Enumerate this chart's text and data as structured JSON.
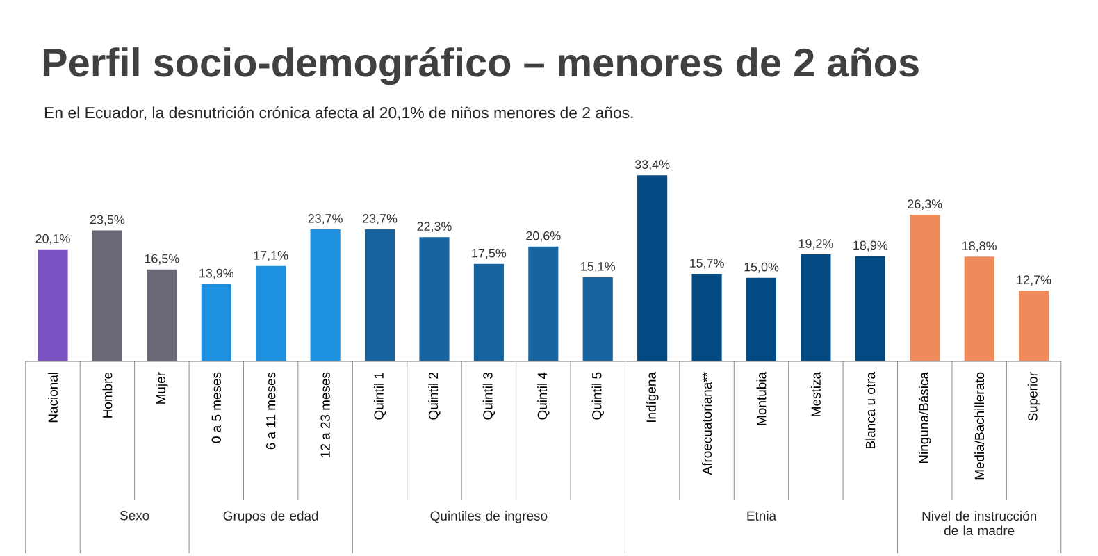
{
  "chart_data": {
    "type": "bar",
    "title": "Perfil socio-demográfico – menores de 2 años",
    "subtitle": "En el Ecuador, la desnutrición crónica afecta al 20,1% de niños menores de 2 años.",
    "categories": [
      "Nacional",
      "Hombre",
      "Mujer",
      "0 a 5 meses",
      "6 a 11 meses",
      "12 a 23 meses",
      "Quintil 1",
      "Quintil 2",
      "Quintil 3",
      "Quintil 4",
      "Quintil 5",
      "Indígena",
      "Afroecuatoriana**",
      "Montubia",
      "Mestiza",
      "Blanca u otra",
      "Ninguna/Básica",
      "Media/Bachillerato",
      "Superior"
    ],
    "values": [
      20.1,
      23.5,
      16.5,
      13.9,
      17.1,
      23.7,
      23.7,
      22.3,
      17.5,
      20.6,
      15.1,
      33.4,
      15.7,
      15.0,
      19.2,
      18.9,
      26.3,
      18.8,
      12.7
    ],
    "value_labels": [
      "20,1%",
      "23,5%",
      "16,5%",
      "13,9%",
      "17,1%",
      "23,7%",
      "23,7%",
      "22,3%",
      "17,5%",
      "20,6%",
      "15,1%",
      "33,4%",
      "15,7%",
      "15,0%",
      "19,2%",
      "18,9%",
      "26,3%",
      "18,8%",
      "12,7%"
    ],
    "colors": [
      "#7b52c1",
      "#686877",
      "#686877",
      "#1e90e0",
      "#1e90e0",
      "#1e90e0",
      "#17649e",
      "#17649e",
      "#17649e",
      "#17649e",
      "#17649e",
      "#044a82",
      "#044a82",
      "#044a82",
      "#044a82",
      "#044a82",
      "#ef8a5a",
      "#ef8a5a",
      "#ef8a5a"
    ],
    "annotations": [
      "Sexo",
      "Grupos de edad",
      "Quintiles de ingreso",
      "Etnia",
      "Nivel de instrucción de la madre"
    ]
  }
}
